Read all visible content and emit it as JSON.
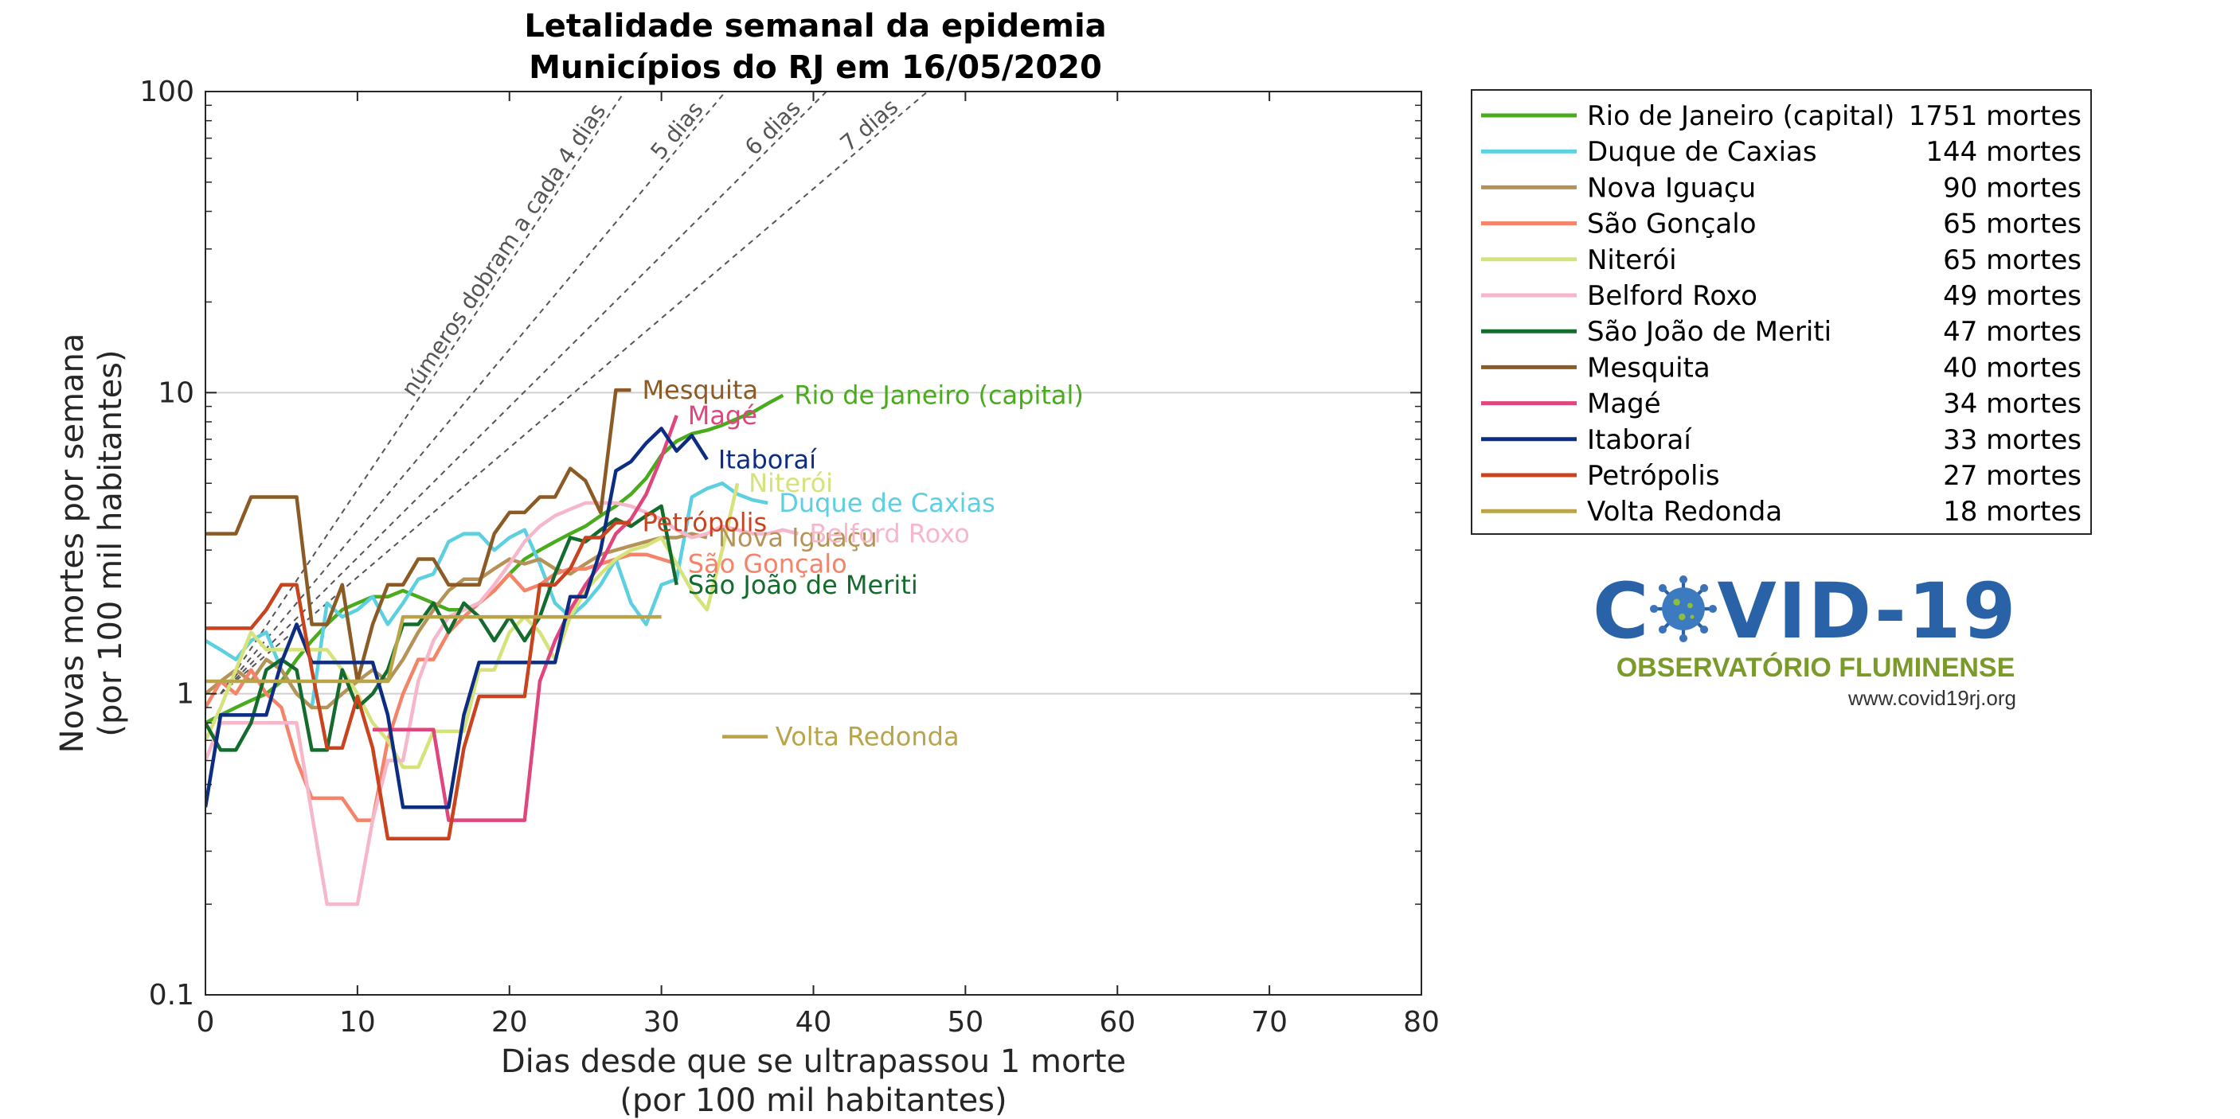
{
  "chart_data": {
    "type": "line",
    "title": [
      "Letalidade semanal da epidemia",
      "Municípios do RJ em 16/05/2020"
    ],
    "xlabel": [
      "Dias desde que se ultrapassou 1 morte",
      "(por 100 mil habitantes)"
    ],
    "ylabel": [
      "Novas mortes por semana",
      "(por 100 mil habitantes)"
    ],
    "xlim": [
      0,
      80
    ],
    "ylim": [
      0.1,
      100
    ],
    "yscale": "log",
    "x_ticks": [
      "0",
      "10",
      "20",
      "30",
      "40",
      "50",
      "60",
      "70",
      "80"
    ],
    "y_ticks": [
      "0.1",
      "1",
      "10",
      "100"
    ],
    "grid": "horizontal major",
    "legend_position": "right",
    "guide_lines": [
      {
        "label": "números dobram a cada 4 dias",
        "doubling_days": 4
      },
      {
        "label": "5 dias",
        "doubling_days": 5
      },
      {
        "label": "6 dias",
        "doubling_days": 6
      },
      {
        "label": "7 dias",
        "doubling_days": 7
      }
    ],
    "series": [
      {
        "name": "Rio de Janeiro (capital)",
        "deaths": "1751 mortes",
        "color": "#4aab1c",
        "x": [
          0,
          1,
          2,
          3,
          4,
          5,
          6,
          7,
          8,
          9,
          10,
          11,
          12,
          13,
          14,
          15,
          16,
          17,
          18,
          19,
          20,
          21,
          22,
          23,
          24,
          25,
          26,
          27,
          28,
          29,
          30,
          31,
          32,
          33,
          34,
          35,
          36,
          37,
          38
        ],
        "y": [
          0.8,
          0.85,
          0.9,
          0.95,
          1.0,
          1.1,
          1.3,
          1.5,
          1.7,
          1.9,
          2.0,
          2.1,
          2.1,
          2.2,
          2.1,
          2.0,
          1.9,
          1.9,
          2.0,
          2.2,
          2.5,
          2.8,
          3.0,
          3.2,
          3.4,
          3.6,
          3.9,
          4.2,
          4.6,
          5.2,
          6.2,
          6.9,
          7.3,
          7.5,
          7.8,
          8.2,
          8.6,
          9.2,
          9.8
        ]
      },
      {
        "name": "Duque de Caxias",
        "deaths": "144 mortes",
        "color": "#5ccfe0",
        "x": [
          0,
          1,
          2,
          3,
          4,
          5,
          6,
          7,
          8,
          9,
          10,
          11,
          12,
          13,
          14,
          15,
          16,
          17,
          18,
          19,
          20,
          21,
          22,
          23,
          24,
          25,
          26,
          27,
          28,
          29,
          30,
          31,
          32,
          33,
          34,
          35,
          36,
          37
        ],
        "y": [
          1.5,
          1.4,
          1.3,
          1.5,
          1.6,
          1.2,
          1.0,
          0.9,
          2.0,
          1.8,
          1.9,
          2.1,
          1.7,
          2.0,
          2.4,
          2.5,
          3.2,
          3.4,
          3.4,
          3.0,
          3.3,
          3.5,
          2.7,
          2.0,
          1.8,
          2.0,
          2.3,
          2.8,
          2.0,
          1.7,
          2.3,
          2.4,
          4.5,
          4.8,
          5.0,
          4.6,
          4.4,
          4.3
        ]
      },
      {
        "name": "Nova Iguaçu",
        "deaths": "90 mortes",
        "color": "#b59358",
        "x": [
          0,
          1,
          2,
          3,
          4,
          5,
          6,
          7,
          8,
          9,
          10,
          11,
          12,
          13,
          14,
          15,
          16,
          17,
          18,
          19,
          20,
          21,
          22,
          23,
          24,
          25,
          26,
          27,
          28,
          29,
          30,
          31,
          32,
          33
        ],
        "y": [
          1.0,
          1.1,
          1.2,
          1.1,
          1.3,
          1.2,
          1.0,
          0.9,
          0.9,
          1.0,
          1.1,
          1.2,
          1.1,
          1.3,
          1.6,
          1.9,
          2.2,
          2.4,
          2.4,
          2.6,
          2.8,
          2.7,
          2.8,
          2.6,
          2.5,
          2.7,
          2.9,
          3.0,
          3.1,
          3.2,
          3.3,
          3.3,
          3.4,
          3.3
        ]
      },
      {
        "name": "São Gonçalo",
        "deaths": "65 mortes",
        "color": "#f5836a",
        "x": [
          0,
          1,
          2,
          3,
          4,
          5,
          6,
          7,
          8,
          9,
          10,
          11,
          12,
          13,
          14,
          15,
          16,
          17,
          18,
          19,
          20,
          21,
          22,
          23,
          24,
          25,
          26,
          27,
          28,
          29,
          30,
          31
        ],
        "y": [
          0.9,
          1.1,
          1.0,
          1.2,
          1.0,
          0.9,
          0.6,
          0.45,
          0.45,
          0.45,
          0.38,
          0.38,
          0.7,
          1.0,
          1.3,
          1.3,
          1.6,
          1.8,
          2.0,
          2.2,
          2.5,
          2.2,
          2.3,
          2.5,
          2.6,
          2.6,
          2.7,
          2.8,
          2.9,
          2.9,
          2.8,
          2.7
        ]
      },
      {
        "name": "Niterói",
        "deaths": "65 mortes",
        "color": "#d6e27a",
        "x": [
          0,
          1,
          2,
          3,
          4,
          5,
          6,
          7,
          8,
          9,
          10,
          11,
          12,
          13,
          14,
          15,
          16,
          17,
          18,
          19,
          20,
          21,
          22,
          23,
          24,
          25,
          26,
          27,
          28,
          29,
          30,
          31,
          32,
          33,
          34,
          35
        ],
        "y": [
          0.7,
          0.9,
          1.2,
          1.6,
          1.4,
          1.4,
          1.4,
          1.4,
          1.4,
          1.2,
          1.0,
          0.8,
          0.7,
          0.57,
          0.57,
          0.75,
          0.75,
          0.75,
          1.2,
          1.2,
          1.6,
          1.8,
          1.6,
          1.3,
          1.8,
          2.2,
          2.5,
          2.8,
          3.0,
          3.1,
          3.3,
          2.7,
          2.2,
          1.9,
          3.0,
          5.0
        ]
      },
      {
        "name": "Belford Roxo",
        "deaths": "49 mortes",
        "color": "#f7b7cb",
        "x": [
          0,
          1,
          2,
          3,
          4,
          5,
          6,
          7,
          8,
          9,
          10,
          11,
          12,
          13,
          14,
          15,
          16,
          17,
          18,
          19,
          20,
          21,
          22,
          23,
          24,
          25,
          26,
          27,
          28,
          29,
          30,
          31,
          32,
          33,
          34,
          35,
          36,
          37,
          38,
          39
        ],
        "y": [
          0.6,
          0.8,
          0.8,
          0.8,
          0.8,
          0.8,
          0.8,
          0.4,
          0.2,
          0.2,
          0.2,
          0.38,
          0.6,
          0.6,
          1.1,
          1.5,
          1.8,
          1.9,
          2.0,
          2.3,
          2.7,
          3.2,
          3.6,
          3.9,
          4.1,
          4.3,
          4.3,
          4.3,
          4.2,
          4.0,
          3.8,
          3.5,
          3.3,
          3.4,
          3.6,
          3.5,
          3.4,
          3.4,
          3.5,
          3.4
        ]
      },
      {
        "name": "São João de Meriti",
        "deaths": "47 mortes",
        "color": "#146b2e",
        "x": [
          0,
          1,
          2,
          3,
          4,
          5,
          6,
          7,
          8,
          9,
          10,
          11,
          12,
          13,
          14,
          15,
          16,
          17,
          18,
          19,
          20,
          21,
          22,
          23,
          24,
          25,
          26,
          27,
          28,
          29,
          30,
          31
        ],
        "y": [
          0.8,
          0.65,
          0.65,
          0.8,
          1.2,
          1.3,
          1.2,
          0.65,
          0.65,
          1.2,
          0.9,
          1.0,
          1.2,
          1.7,
          1.7,
          2.0,
          1.6,
          2.0,
          1.8,
          1.5,
          1.8,
          1.5,
          1.8,
          2.5,
          3.3,
          3.2,
          3.5,
          3.8,
          3.6,
          3.9,
          4.2,
          2.3
        ]
      },
      {
        "name": "Mesquita",
        "deaths": "40 mortes",
        "color": "#8b5a25",
        "x": [
          0,
          1,
          2,
          3,
          4,
          5,
          6,
          7,
          8,
          9,
          10,
          11,
          12,
          13,
          14,
          15,
          16,
          17,
          18,
          19,
          20,
          21,
          22,
          23,
          24,
          25,
          26,
          27,
          28
        ],
        "y": [
          3.4,
          3.4,
          3.4,
          4.5,
          4.5,
          4.5,
          4.5,
          1.7,
          1.7,
          2.3,
          1.1,
          1.7,
          2.3,
          2.3,
          2.8,
          2.8,
          2.3,
          2.3,
          2.3,
          3.4,
          4.0,
          4.0,
          4.5,
          4.5,
          5.6,
          5.1,
          4.0,
          10.2,
          10.2
        ]
      },
      {
        "name": "Magé",
        "deaths": "34 mortes",
        "color": "#e0457d",
        "x": [
          11,
          12,
          13,
          14,
          15,
          16,
          17,
          18,
          19,
          20,
          21,
          22,
          23,
          24,
          25,
          26,
          27,
          28,
          29,
          30,
          31
        ],
        "y": [
          0.76,
          0.76,
          0.76,
          0.76,
          0.76,
          0.38,
          0.38,
          0.38,
          0.38,
          0.38,
          0.38,
          1.1,
          1.5,
          1.9,
          2.3,
          2.7,
          3.4,
          3.8,
          4.6,
          6.1,
          8.4
        ]
      },
      {
        "name": "Itaboraí",
        "deaths": "33 mortes",
        "color": "#0c2d82",
        "x": [
          0,
          1,
          2,
          3,
          4,
          5,
          6,
          7,
          8,
          9,
          10,
          11,
          12,
          13,
          14,
          15,
          16,
          17,
          18,
          19,
          20,
          21,
          22,
          23,
          24,
          25,
          26,
          27,
          28,
          29,
          30,
          31,
          32,
          33
        ],
        "y": [
          0.42,
          0.85,
          0.85,
          0.85,
          0.85,
          1.27,
          1.7,
          1.27,
          1.27,
          1.27,
          1.27,
          1.27,
          0.85,
          0.42,
          0.42,
          0.42,
          0.42,
          0.85,
          1.27,
          1.27,
          1.27,
          1.27,
          1.27,
          1.27,
          2.1,
          2.1,
          3.0,
          5.5,
          5.9,
          6.8,
          7.6,
          6.4,
          7.2,
          6.0
        ]
      },
      {
        "name": "Petrópolis",
        "deaths": "27 mortes",
        "color": "#c8431e",
        "x": [
          0,
          1,
          2,
          3,
          4,
          5,
          6,
          7,
          8,
          9,
          10,
          11,
          12,
          13,
          14,
          15,
          16,
          17,
          18,
          19,
          20,
          21,
          22,
          23,
          24,
          25,
          26,
          27,
          28
        ],
        "y": [
          1.65,
          1.65,
          1.65,
          1.65,
          1.9,
          2.3,
          2.3,
          1.2,
          0.66,
          0.66,
          0.98,
          0.66,
          0.33,
          0.33,
          0.33,
          0.33,
          0.33,
          0.66,
          0.98,
          0.98,
          0.98,
          0.98,
          2.3,
          2.3,
          2.6,
          3.3,
          3.3,
          3.7,
          3.7
        ]
      },
      {
        "name": "Volta Redonda",
        "deaths": "18 mortes",
        "color": "#b9a547",
        "x": [
          0,
          1,
          2,
          3,
          4,
          5,
          6,
          7,
          8,
          9,
          10,
          11,
          12,
          13,
          14,
          15,
          16,
          17,
          18,
          19,
          20,
          21,
          22,
          23,
          24,
          25,
          26,
          27,
          28,
          29,
          30
        ],
        "y": [
          1.1,
          1.1,
          1.1,
          1.1,
          1.1,
          1.1,
          1.1,
          1.1,
          1.1,
          1.1,
          1.1,
          1.1,
          1.1,
          1.8,
          1.8,
          1.8,
          1.8,
          1.8,
          1.8,
          1.8,
          1.8,
          1.8,
          1.8,
          1.8,
          1.8,
          1.8,
          1.8,
          1.8,
          1.8,
          1.8,
          1.8
        ]
      }
    ]
  },
  "logo": {
    "title_left": "C",
    "title_right": "VID-19",
    "subtitle": "OBSERVATÓRIO FLUMINENSE",
    "url": "www.covid19rj.org"
  }
}
